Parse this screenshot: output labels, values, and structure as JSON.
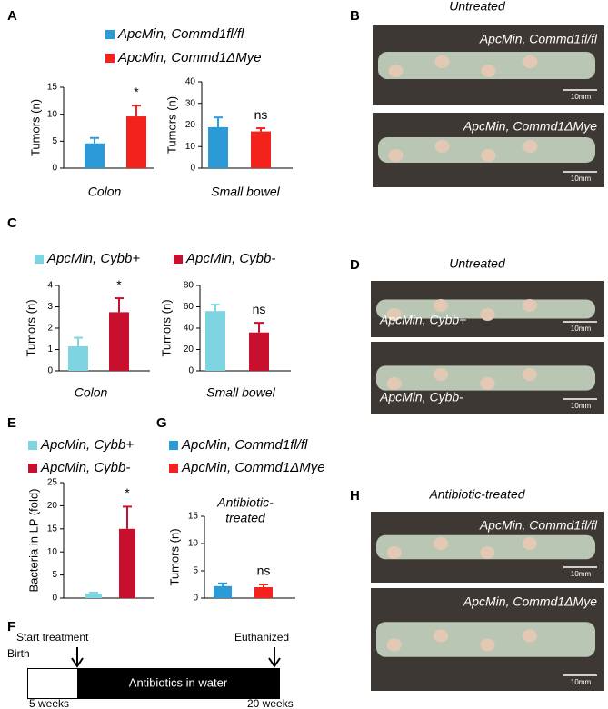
{
  "chart_data": [
    {
      "type": "bar",
      "ylabel": "Tumors (n)",
      "xlabel": "Colon",
      "annotation": "*",
      "ylim": [
        0,
        15
      ],
      "yticks": [
        0,
        5,
        10,
        15
      ],
      "series": [
        {
          "name": "ApcMin, Commd1fl/fl",
          "color": "#2b9bd8",
          "values": [
            4.6
          ],
          "errors": [
            1.0
          ]
        },
        {
          "name": "ApcMin, Commd1ΔMye",
          "color": "#f4221c",
          "values": [
            9.6
          ],
          "errors": [
            2.0
          ]
        }
      ]
    },
    {
      "type": "bar",
      "ylabel": "Tumors (n)",
      "xlabel": "Small bowel",
      "annotation": "ns",
      "ylim": [
        0,
        40
      ],
      "yticks": [
        0,
        10,
        20,
        30,
        40
      ],
      "series": [
        {
          "color": "#2b9bd8",
          "values": [
            19
          ],
          "errors": [
            4.5
          ]
        },
        {
          "color": "#f4221c",
          "values": [
            17
          ],
          "errors": [
            1.5
          ]
        }
      ]
    },
    {
      "type": "bar",
      "ylabel": "Tumors (n)",
      "xlabel": "Colon",
      "annotation": "*",
      "ylim": [
        0,
        4
      ],
      "yticks": [
        0,
        1,
        2,
        3,
        4
      ],
      "series": [
        {
          "name": "ApcMin, Cybb+",
          "color": "#7fd4e2",
          "values": [
            1.15
          ],
          "errors": [
            0.4
          ]
        },
        {
          "name": "ApcMin, Cybb-",
          "color": "#c8102e",
          "values": [
            2.75
          ],
          "errors": [
            0.65
          ]
        }
      ]
    },
    {
      "type": "bar",
      "ylabel": "Tumors (n)",
      "xlabel": "Small bowel",
      "annotation": "ns",
      "ylim": [
        0,
        80
      ],
      "yticks": [
        0,
        20,
        40,
        60,
        80
      ],
      "series": [
        {
          "color": "#7fd4e2",
          "values": [
            56
          ],
          "errors": [
            6
          ]
        },
        {
          "color": "#c8102e",
          "values": [
            36
          ],
          "errors": [
            9
          ]
        }
      ]
    },
    {
      "type": "bar",
      "ylabel": "Bacteria in LP (fold)",
      "annotation": "*",
      "ylim": [
        0,
        25
      ],
      "yticks": [
        0,
        5,
        10,
        15,
        20,
        25
      ],
      "series": [
        {
          "name": "ApcMin, Cybb+",
          "color": "#7fd4e2",
          "values": [
            1.0
          ],
          "errors": [
            0.2
          ]
        },
        {
          "name": "ApcMin, Cybb-",
          "color": "#c8102e",
          "values": [
            15
          ],
          "errors": [
            4.8
          ]
        }
      ]
    },
    {
      "type": "bar",
      "ylabel": "Tumors (n)",
      "annotation": "ns",
      "note": [
        "Antibiotic-",
        "treated"
      ],
      "ylim": [
        0,
        15
      ],
      "yticks": [
        0,
        5,
        10,
        15
      ],
      "series": [
        {
          "name": "ApcMin, Commd1fl/fl",
          "color": "#2b9bd8",
          "values": [
            2.2
          ],
          "errors": [
            0.5
          ]
        },
        {
          "name": "ApcMin, Commd1ΔMye",
          "color": "#f4221c",
          "values": [
            2.0
          ],
          "errors": [
            0.5
          ]
        }
      ]
    }
  ],
  "panel_labels": [
    "A",
    "B",
    "C",
    "D",
    "E",
    "F",
    "G",
    "H"
  ],
  "photo_panels": [
    {
      "title": "Untreated",
      "images": [
        {
          "label": "ApcMin, Commd1fl/fl",
          "scale": "10mm"
        },
        {
          "label": "ApcMin, Commd1ΔMye",
          "scale": "10mm"
        }
      ]
    },
    {
      "title": "Untreated",
      "images": [
        {
          "label": "ApcMin, Cybb+",
          "scale": "10mm"
        },
        {
          "label": "ApcMin, Cybb-",
          "scale": "10mm"
        }
      ]
    },
    {
      "title": "Antibiotic-treated",
      "images": [
        {
          "label": "ApcMin, Commd1fl/fl",
          "scale": "10mm"
        },
        {
          "label": "ApcMin, Commd1ΔMye",
          "scale": "10mm"
        }
      ]
    }
  ],
  "timeline": {
    "events": [
      "Birth",
      "Start treatment",
      "Euthanized"
    ],
    "bar_label": "Antibiotics in water",
    "times": [
      "5 weeks",
      "20 weeks"
    ]
  }
}
